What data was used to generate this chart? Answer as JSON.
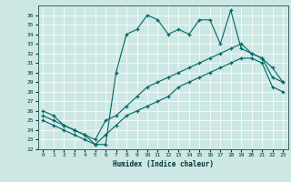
{
  "xlabel": "Humidex (Indice chaleur)",
  "bg_color": "#cde8e4",
  "grid_color": "#ffffff",
  "line_color": "#006666",
  "xlim": [
    -0.5,
    23.5
  ],
  "ylim": [
    22,
    37
  ],
  "xticks": [
    0,
    1,
    2,
    3,
    4,
    5,
    6,
    7,
    8,
    9,
    10,
    11,
    12,
    13,
    14,
    15,
    16,
    17,
    18,
    19,
    20,
    21,
    22,
    23
  ],
  "yticks": [
    22,
    23,
    24,
    25,
    26,
    27,
    28,
    29,
    30,
    31,
    32,
    33,
    34,
    35,
    36
  ],
  "series1_x": [
    0,
    1,
    2,
    3,
    4,
    5,
    6,
    7,
    8,
    9,
    10,
    11,
    12,
    13,
    14,
    15,
    16,
    17,
    18,
    19,
    20,
    21,
    22,
    23
  ],
  "series1_y": [
    26.0,
    25.5,
    24.5,
    24.0,
    23.5,
    22.5,
    22.5,
    30.0,
    34.0,
    34.5,
    36.0,
    35.5,
    34.0,
    34.5,
    34.0,
    35.5,
    35.5,
    33.0,
    36.5,
    32.5,
    32.0,
    31.5,
    30.5,
    29.0
  ],
  "series2_x": [
    0,
    1,
    2,
    3,
    4,
    5,
    6,
    7,
    8,
    9,
    10,
    11,
    12,
    13,
    14,
    15,
    16,
    17,
    18,
    19,
    20,
    21,
    22,
    23
  ],
  "series2_y": [
    25.5,
    25.0,
    24.5,
    24.0,
    23.5,
    23.0,
    25.0,
    25.5,
    26.5,
    27.5,
    28.5,
    29.0,
    29.5,
    30.0,
    30.5,
    31.0,
    31.5,
    32.0,
    32.5,
    33.0,
    32.0,
    31.5,
    29.5,
    29.0
  ],
  "series3_x": [
    0,
    1,
    2,
    3,
    4,
    5,
    6,
    7,
    8,
    9,
    10,
    11,
    12,
    13,
    14,
    15,
    16,
    17,
    18,
    19,
    20,
    21,
    22,
    23
  ],
  "series3_y": [
    25.0,
    24.5,
    24.0,
    23.5,
    23.0,
    22.5,
    23.5,
    24.5,
    25.5,
    26.0,
    26.5,
    27.0,
    27.5,
    28.5,
    29.0,
    29.5,
    30.0,
    30.5,
    31.0,
    31.5,
    31.5,
    31.0,
    28.5,
    28.0
  ]
}
